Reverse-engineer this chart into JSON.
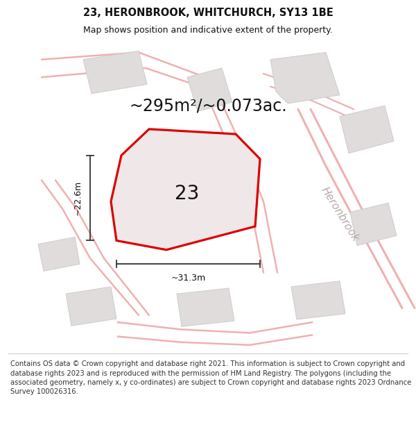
{
  "title": "23, HERONBROOK, WHITCHURCH, SY13 1BE",
  "subtitle": "Map shows position and indicative extent of the property.",
  "area_text": "~295m²/~0.073ac.",
  "label_23": "23",
  "dim_width": "~31.3m",
  "dim_height": "~22.6m",
  "heronbrook_label": "Heronbrook",
  "footer": "Contains OS data © Crown copyright and database right 2021. This information is subject to Crown copyright and database rights 2023 and is reproduced with the permission of HM Land Registry. The polygons (including the associated geometry, namely x, y co-ordinates) are subject to Crown copyright and database rights 2023 Ordnance Survey 100026316.",
  "bg_color": "#ffffff",
  "map_bg": "#f8f6f6",
  "plot_fill": "#f0e8e8",
  "plot_outline": "#dd0000",
  "road_color": "#f0b0b0",
  "bld_fill": "#e0dcdc",
  "bld_edge": "#cccccc",
  "text_color": "#111111",
  "dim_color": "#333333",
  "heronbrook_color": "#b8a8a8",
  "footer_color": "#333333",
  "title_fontsize": 10.5,
  "subtitle_fontsize": 9,
  "area_fontsize": 17,
  "label_fontsize": 20,
  "dim_fontsize": 9,
  "footer_fontsize": 7.2,
  "heronbrook_fontsize": 11
}
